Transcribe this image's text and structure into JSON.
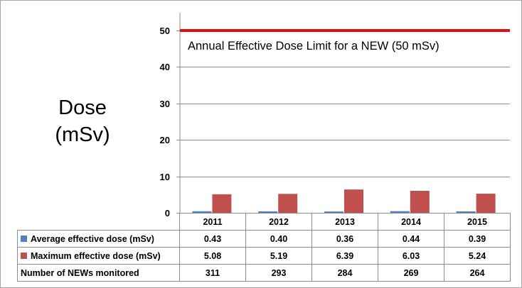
{
  "chart_data": {
    "type": "bar",
    "ylabel_line1": "Dose",
    "ylabel_line2": "(mSv)",
    "ylim": [
      0,
      50
    ],
    "yticks": [
      "0",
      "10",
      "20",
      "30",
      "40",
      "50"
    ],
    "grid": true,
    "categories": [
      "2011",
      "2012",
      "2013",
      "2014",
      "2015"
    ],
    "series": [
      {
        "name": "Average effective dose (mSv)",
        "color": "#4f81bd",
        "values": [
          0.43,
          0.4,
          0.36,
          0.44,
          0.39
        ],
        "labels": [
          "0.43",
          "0.40",
          "0.36",
          "0.44",
          "0.39"
        ]
      },
      {
        "name": "Maximum effective dose (mSv)",
        "color": "#c0504d",
        "values": [
          5.08,
          5.19,
          6.39,
          6.03,
          5.24
        ],
        "labels": [
          "5.08",
          "5.19",
          "6.39",
          "6.03",
          "5.24"
        ]
      }
    ],
    "table_extra_row": {
      "name": "Number of NEWs monitored",
      "values": [
        "311",
        "293",
        "284",
        "269",
        "264"
      ]
    },
    "reference_line": {
      "value": 50,
      "color": "#e01010",
      "label": "Annual Effective Dose Limit for a NEW (50 mSv)"
    }
  }
}
